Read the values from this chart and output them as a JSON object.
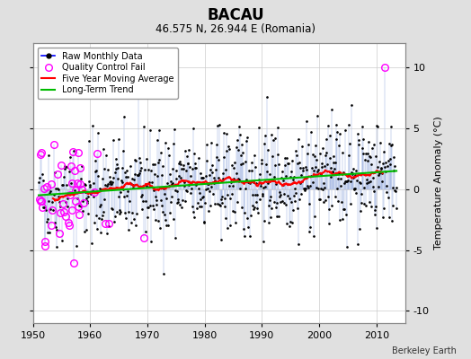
{
  "title": "BACAU",
  "subtitle": "46.575 N, 26.944 E (Romania)",
  "credit": "Berkeley Earth",
  "ylabel": "Temperature Anomaly (°C)",
  "xlim": [
    1950,
    2015
  ],
  "ylim": [
    -11,
    12
  ],
  "yticks": [
    -10,
    -5,
    0,
    5,
    10
  ],
  "xticks": [
    1950,
    1960,
    1970,
    1980,
    1990,
    2000,
    2010
  ],
  "bg_color": "#e0e0e0",
  "plot_bg_color": "#ffffff",
  "seed": 42
}
